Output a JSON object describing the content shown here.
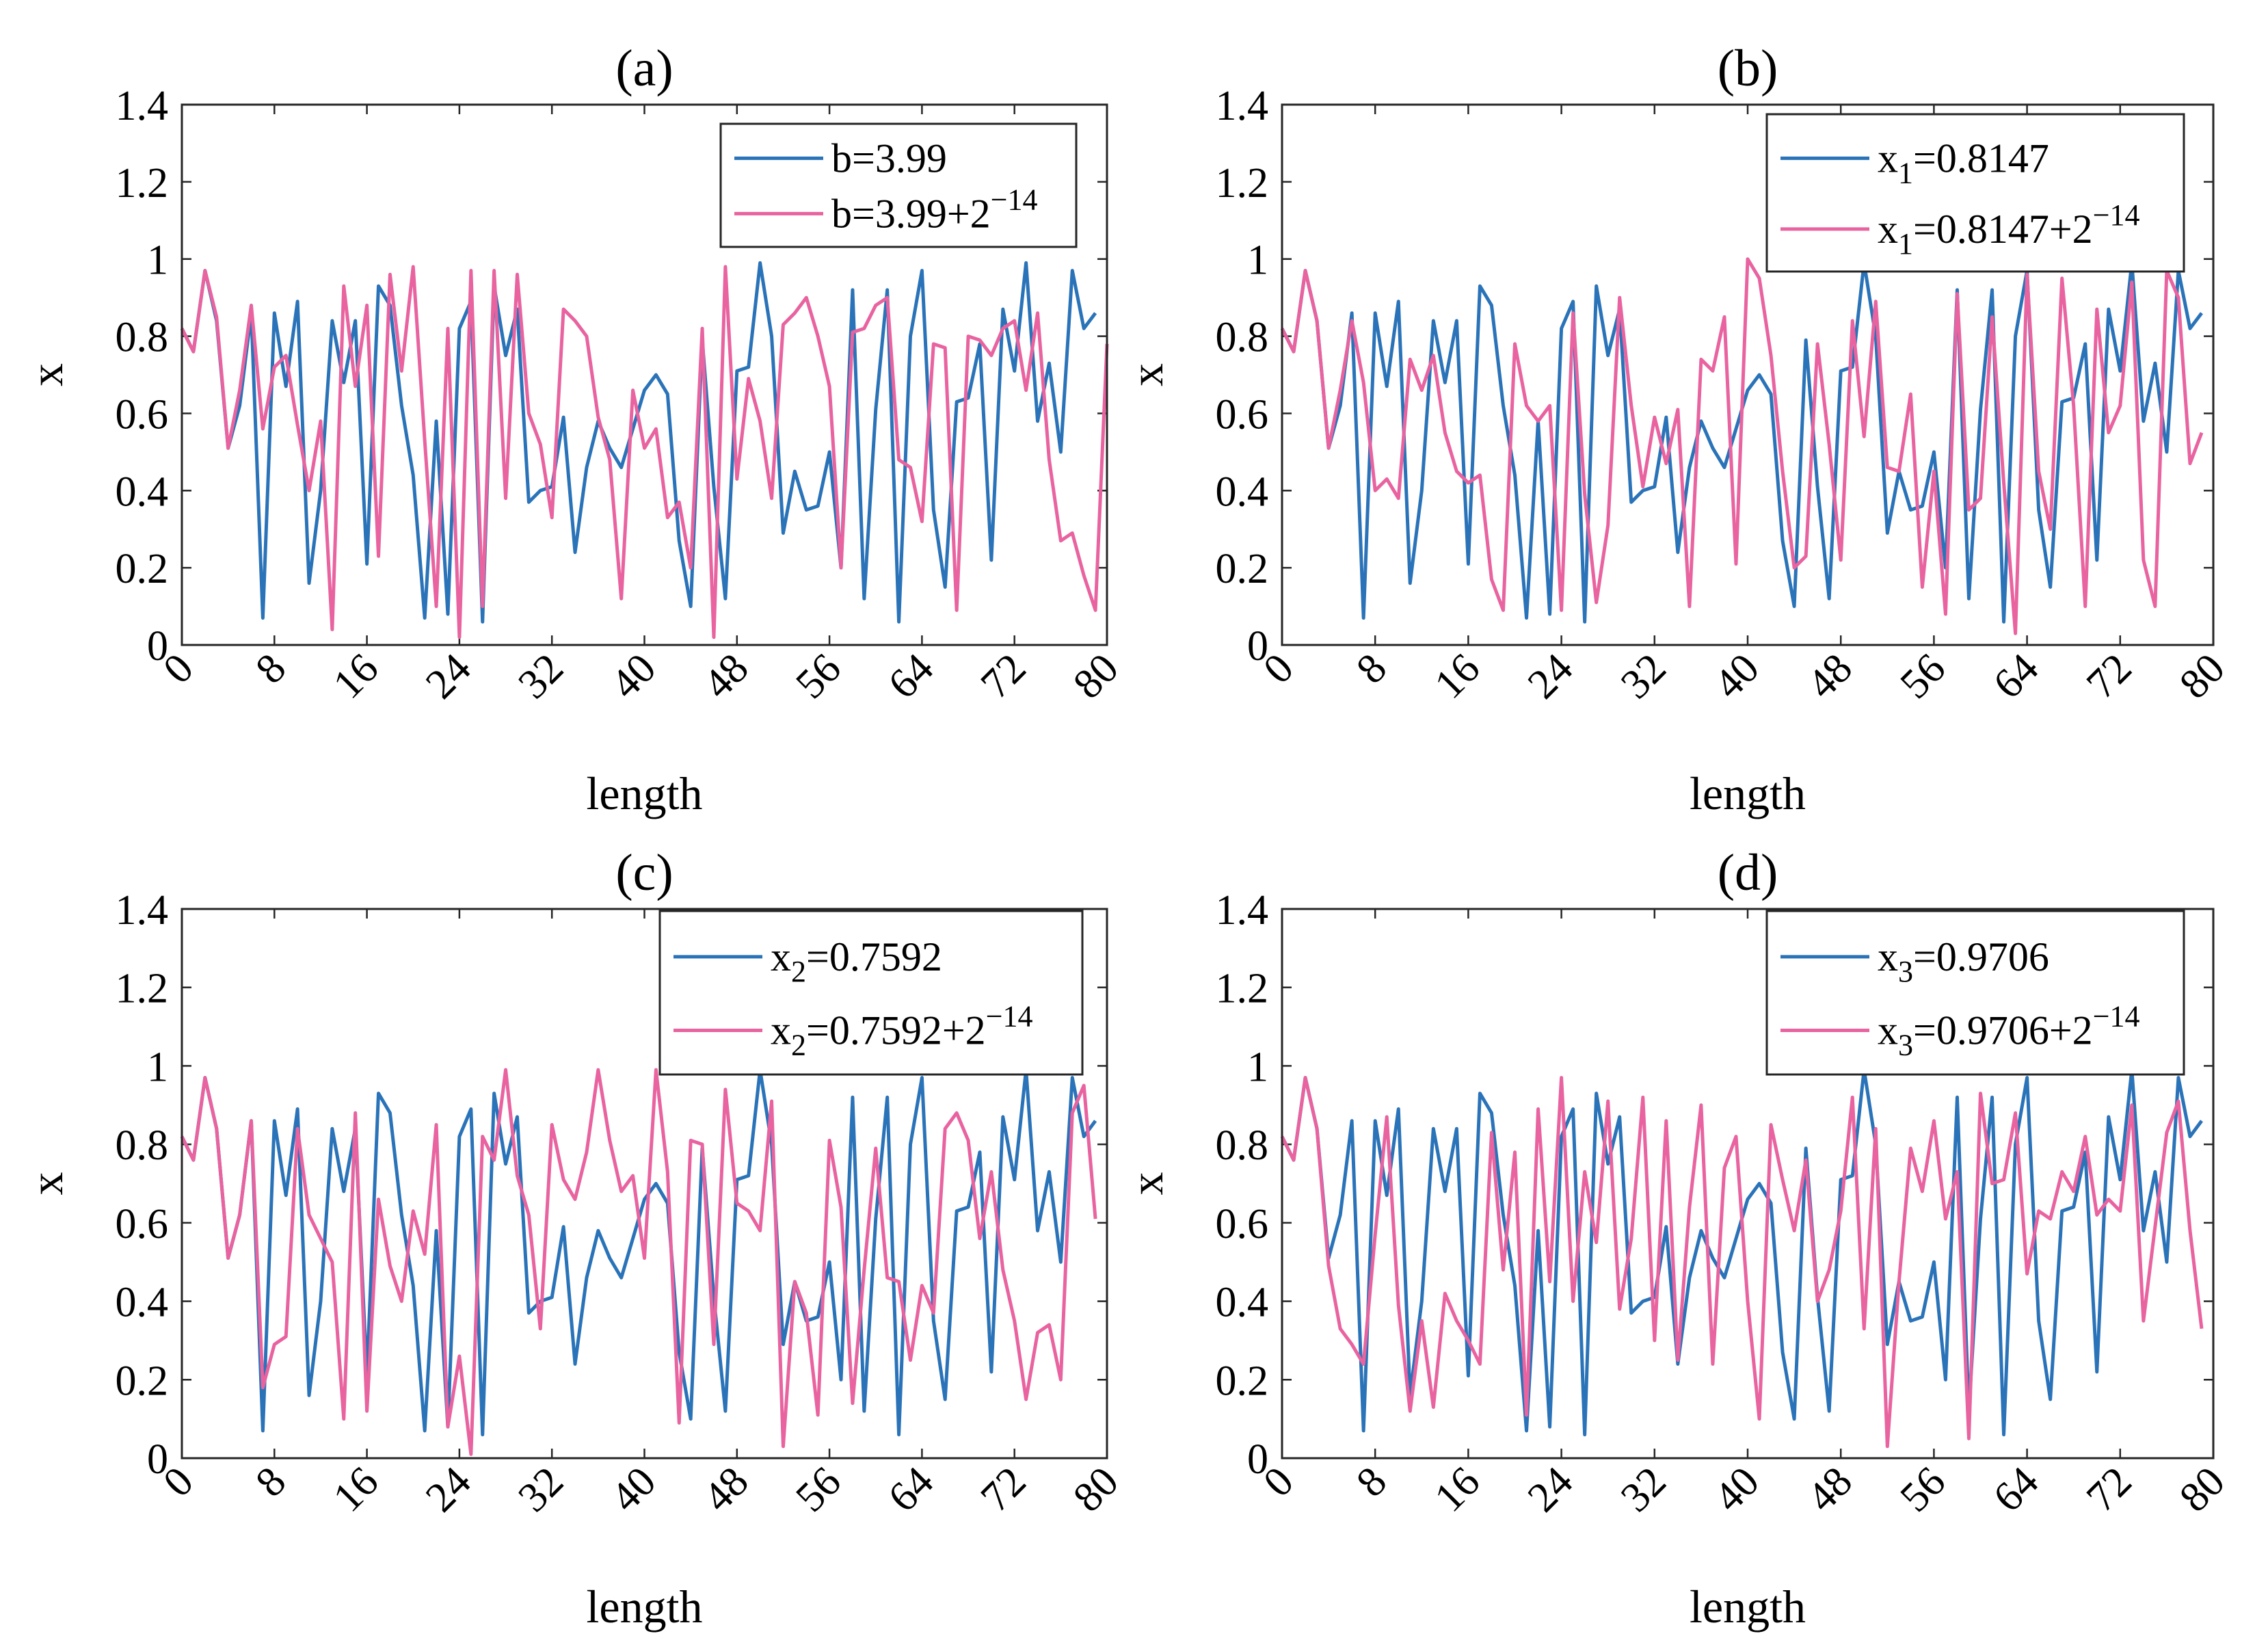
{
  "colors": {
    "series1": "#2a73b8",
    "series2": "#e8639f",
    "axis": "#262626"
  },
  "chart_data": [
    {
      "type": "line",
      "title": "(a)",
      "xlabel": "length",
      "ylabel": "x",
      "xlim": [
        0,
        80
      ],
      "ylim": [
        0,
        1.4
      ],
      "xticks": [
        "0",
        "8",
        "16",
        "24",
        "32",
        "40",
        "48",
        "56",
        "64",
        "72",
        "80"
      ],
      "yticks": [
        "0",
        "0.2",
        "0.4",
        "0.6",
        "0.8",
        "1",
        "1.2",
        "1.4"
      ],
      "legend_position": "top-right",
      "series": [
        {
          "name": "b=3.99",
          "legend": {
            "base": "b=3.99",
            "sub": "",
            "rest": "",
            "sup": ""
          },
          "values": [
            0.82,
            0.76,
            0.97,
            0.84,
            0.51,
            0.62,
            0.86,
            0.07,
            0.86,
            0.67,
            0.89,
            0.16,
            0.4,
            0.84,
            0.68,
            0.84,
            0.21,
            0.93,
            0.88,
            0.62,
            0.44,
            0.07,
            0.58,
            0.08,
            0.82,
            0.89,
            0.06,
            0.93,
            0.75,
            0.87,
            0.37,
            0.4,
            0.41,
            0.59,
            0.24,
            0.46,
            0.58,
            0.51,
            0.46,
            0.56,
            0.66,
            0.7,
            0.65,
            0.27,
            0.1,
            0.79,
            0.41,
            0.12,
            0.71,
            0.72,
            0.99,
            0.8,
            0.29,
            0.45,
            0.35,
            0.36,
            0.5,
            0.2,
            0.92,
            0.12,
            0.61,
            0.92,
            0.06,
            0.8,
            0.97,
            0.35,
            0.15,
            0.63,
            0.64,
            0.78,
            0.22,
            0.87,
            0.71,
            0.99,
            0.58,
            0.73,
            0.5,
            0.97,
            0.82,
            0.86
          ]
        },
        {
          "name": "b=3.99+2^-14",
          "legend": {
            "base": "b=3.99+2",
            "sub": "",
            "rest": "",
            "sup": "−14"
          },
          "values": [
            0.82,
            0.76,
            0.97,
            0.85,
            0.51,
            0.66,
            0.88,
            0.56,
            0.72,
            0.75,
            0.57,
            0.4,
            0.58,
            0.04,
            0.93,
            0.67,
            0.88,
            0.23,
            0.96,
            0.71,
            0.98,
            0.53,
            0.1,
            0.82,
            0.02,
            0.97,
            0.1,
            0.97,
            0.38,
            0.96,
            0.6,
            0.52,
            0.33,
            0.87,
            0.84,
            0.8,
            0.59,
            0.48,
            0.12,
            0.66,
            0.51,
            0.56,
            0.33,
            0.37,
            0.2,
            0.82,
            0.02,
            0.98,
            0.43,
            0.69,
            0.58,
            0.38,
            0.83,
            0.86,
            0.9,
            0.8,
            0.67,
            0.2,
            0.81,
            0.82,
            0.88,
            0.9,
            0.48,
            0.46,
            0.32,
            0.78,
            0.77,
            0.09,
            0.8,
            0.79,
            0.75,
            0.82,
            0.84,
            0.66,
            0.86,
            0.48,
            0.27,
            0.29,
            0.18,
            0.09,
            0.78
          ]
        }
      ]
    },
    {
      "type": "line",
      "title": "(b)",
      "xlabel": "length",
      "ylabel": "x",
      "xlim": [
        0,
        80
      ],
      "ylim": [
        0,
        1.4
      ],
      "xticks": [
        "0",
        "8",
        "16",
        "24",
        "32",
        "40",
        "48",
        "56",
        "64",
        "72",
        "80"
      ],
      "yticks": [
        "0",
        "0.2",
        "0.4",
        "0.6",
        "0.8",
        "1",
        "1.2",
        "1.4"
      ],
      "legend_position": "top-right",
      "series": [
        {
          "name": "x_1=0.8147",
          "legend": {
            "base": "x",
            "sub": "1",
            "rest": "=0.8147",
            "sup": ""
          },
          "values": [
            0.82,
            0.76,
            0.97,
            0.84,
            0.51,
            0.62,
            0.86,
            0.07,
            0.86,
            0.67,
            0.89,
            0.16,
            0.4,
            0.84,
            0.68,
            0.84,
            0.21,
            0.93,
            0.88,
            0.62,
            0.44,
            0.07,
            0.58,
            0.08,
            0.82,
            0.89,
            0.06,
            0.93,
            0.75,
            0.87,
            0.37,
            0.4,
            0.41,
            0.59,
            0.24,
            0.46,
            0.58,
            0.51,
            0.46,
            0.56,
            0.66,
            0.7,
            0.65,
            0.27,
            0.1,
            0.79,
            0.41,
            0.12,
            0.71,
            0.72,
            0.99,
            0.8,
            0.29,
            0.45,
            0.35,
            0.36,
            0.5,
            0.2,
            0.92,
            0.12,
            0.61,
            0.92,
            0.06,
            0.8,
            0.97,
            0.35,
            0.15,
            0.63,
            0.64,
            0.78,
            0.22,
            0.87,
            0.71,
            0.99,
            0.58,
            0.73,
            0.5,
            0.97,
            0.82,
            0.86
          ]
        },
        {
          "name": "x_1=0.8147+2^-14",
          "legend": {
            "base": "x",
            "sub": "1",
            "rest": "=0.8147+2",
            "sup": "−14"
          },
          "values": [
            0.82,
            0.76,
            0.97,
            0.84,
            0.51,
            0.66,
            0.84,
            0.68,
            0.4,
            0.43,
            0.38,
            0.74,
            0.66,
            0.75,
            0.55,
            0.45,
            0.42,
            0.44,
            0.17,
            0.09,
            0.78,
            0.62,
            0.58,
            0.62,
            0.09,
            0.86,
            0.39,
            0.11,
            0.31,
            0.9,
            0.62,
            0.41,
            0.59,
            0.47,
            0.61,
            0.1,
            0.74,
            0.71,
            0.85,
            0.21,
            1.0,
            0.95,
            0.75,
            0.45,
            0.2,
            0.23,
            0.78,
            0.52,
            0.22,
            0.84,
            0.54,
            0.89,
            0.46,
            0.45,
            0.65,
            0.15,
            0.45,
            0.08,
            0.91,
            0.35,
            0.38,
            0.85,
            0.42,
            0.03,
            0.96,
            0.45,
            0.3,
            0.95,
            0.62,
            0.1,
            0.87,
            0.55,
            0.62,
            0.94,
            0.22,
            0.1,
            0.97,
            0.9,
            0.47,
            0.55
          ]
        }
      ]
    },
    {
      "type": "line",
      "title": "(c)",
      "xlabel": "length",
      "ylabel": "x",
      "xlim": [
        0,
        80
      ],
      "ylim": [
        0,
        1.4
      ],
      "xticks": [
        "0",
        "8",
        "16",
        "24",
        "32",
        "40",
        "48",
        "56",
        "64",
        "72",
        "80"
      ],
      "yticks": [
        "0",
        "0.2",
        "0.4",
        "0.6",
        "0.8",
        "1",
        "1.2",
        "1.4"
      ],
      "legend_position": "top-right",
      "series": [
        {
          "name": "x_2=0.7592",
          "legend": {
            "base": "x",
            "sub": "2",
            "rest": "=0.7592",
            "sup": ""
          },
          "values": [
            0.82,
            0.76,
            0.97,
            0.84,
            0.51,
            0.62,
            0.86,
            0.07,
            0.86,
            0.67,
            0.89,
            0.16,
            0.4,
            0.84,
            0.68,
            0.84,
            0.21,
            0.93,
            0.88,
            0.62,
            0.44,
            0.07,
            0.58,
            0.08,
            0.82,
            0.89,
            0.06,
            0.93,
            0.75,
            0.87,
            0.37,
            0.4,
            0.41,
            0.59,
            0.24,
            0.46,
            0.58,
            0.51,
            0.46,
            0.56,
            0.66,
            0.7,
            0.65,
            0.27,
            0.1,
            0.79,
            0.41,
            0.12,
            0.71,
            0.72,
            0.99,
            0.8,
            0.29,
            0.45,
            0.35,
            0.36,
            0.5,
            0.2,
            0.92,
            0.12,
            0.61,
            0.92,
            0.06,
            0.8,
            0.97,
            0.35,
            0.15,
            0.63,
            0.64,
            0.78,
            0.22,
            0.87,
            0.71,
            0.99,
            0.58,
            0.73,
            0.5,
            0.97,
            0.82,
            0.86
          ]
        },
        {
          "name": "x_2=0.7592+2^-14",
          "legend": {
            "base": "x",
            "sub": "2",
            "rest": "=0.7592+2",
            "sup": "−14"
          },
          "values": [
            0.82,
            0.76,
            0.97,
            0.84,
            0.51,
            0.62,
            0.86,
            0.18,
            0.29,
            0.31,
            0.84,
            0.62,
            0.56,
            0.5,
            0.1,
            0.88,
            0.12,
            0.66,
            0.49,
            0.4,
            0.63,
            0.52,
            0.85,
            0.08,
            0.26,
            0.01,
            0.82,
            0.76,
            0.99,
            0.72,
            0.62,
            0.33,
            0.85,
            0.71,
            0.66,
            0.78,
            0.99,
            0.81,
            0.68,
            0.72,
            0.51,
            0.99,
            0.73,
            0.09,
            0.81,
            0.8,
            0.29,
            0.94,
            0.65,
            0.63,
            0.58,
            0.91,
            0.03,
            0.45,
            0.37,
            0.11,
            0.81,
            0.64,
            0.14,
            0.48,
            0.79,
            0.46,
            0.45,
            0.25,
            0.44,
            0.37,
            0.84,
            0.88,
            0.81,
            0.56,
            0.73,
            0.48,
            0.35,
            0.15,
            0.32,
            0.34,
            0.2,
            0.88,
            0.95,
            0.61
          ]
        }
      ]
    },
    {
      "type": "line",
      "title": "(d)",
      "xlabel": "length",
      "ylabel": "x",
      "xlim": [
        0,
        80
      ],
      "ylim": [
        0,
        1.4
      ],
      "xticks": [
        "0",
        "8",
        "16",
        "24",
        "32",
        "40",
        "48",
        "56",
        "64",
        "72",
        "80"
      ],
      "yticks": [
        "0",
        "0.2",
        "0.4",
        "0.6",
        "0.8",
        "1",
        "1.2",
        "1.4"
      ],
      "legend_position": "top-right",
      "series": [
        {
          "name": "x_3=0.9706",
          "legend": {
            "base": "x",
            "sub": "3",
            "rest": "=0.9706",
            "sup": ""
          },
          "values": [
            0.82,
            0.76,
            0.97,
            0.84,
            0.51,
            0.62,
            0.86,
            0.07,
            0.86,
            0.67,
            0.89,
            0.16,
            0.4,
            0.84,
            0.68,
            0.84,
            0.21,
            0.93,
            0.88,
            0.62,
            0.44,
            0.07,
            0.58,
            0.08,
            0.82,
            0.89,
            0.06,
            0.93,
            0.75,
            0.87,
            0.37,
            0.4,
            0.41,
            0.59,
            0.24,
            0.46,
            0.58,
            0.51,
            0.46,
            0.56,
            0.66,
            0.7,
            0.65,
            0.27,
            0.1,
            0.79,
            0.41,
            0.12,
            0.71,
            0.72,
            0.99,
            0.8,
            0.29,
            0.45,
            0.35,
            0.36,
            0.5,
            0.2,
            0.92,
            0.12,
            0.61,
            0.92,
            0.06,
            0.8,
            0.97,
            0.35,
            0.15,
            0.63,
            0.64,
            0.78,
            0.22,
            0.87,
            0.71,
            0.99,
            0.58,
            0.73,
            0.5,
            0.97,
            0.82,
            0.86
          ]
        },
        {
          "name": "x_3=0.9706+2^-14",
          "legend": {
            "base": "x",
            "sub": "3",
            "rest": "=0.9706+2",
            "sup": "−14"
          },
          "values": [
            0.82,
            0.76,
            0.97,
            0.84,
            0.49,
            0.33,
            0.29,
            0.24,
            0.57,
            0.87,
            0.39,
            0.12,
            0.35,
            0.13,
            0.42,
            0.35,
            0.3,
            0.24,
            0.83,
            0.48,
            0.78,
            0.11,
            0.89,
            0.45,
            0.97,
            0.4,
            0.73,
            0.55,
            0.91,
            0.38,
            0.56,
            0.92,
            0.3,
            0.86,
            0.25,
            0.64,
            0.9,
            0.24,
            0.74,
            0.82,
            0.4,
            0.1,
            0.85,
            0.71,
            0.58,
            0.76,
            0.4,
            0.48,
            0.63,
            0.92,
            0.33,
            0.84,
            0.03,
            0.45,
            0.79,
            0.68,
            0.86,
            0.61,
            0.73,
            0.05,
            0.93,
            0.7,
            0.71,
            0.88,
            0.47,
            0.63,
            0.61,
            0.73,
            0.68,
            0.82,
            0.62,
            0.66,
            0.63,
            0.9,
            0.35,
            0.59,
            0.83,
            0.91,
            0.58,
            0.33
          ]
        }
      ]
    }
  ]
}
